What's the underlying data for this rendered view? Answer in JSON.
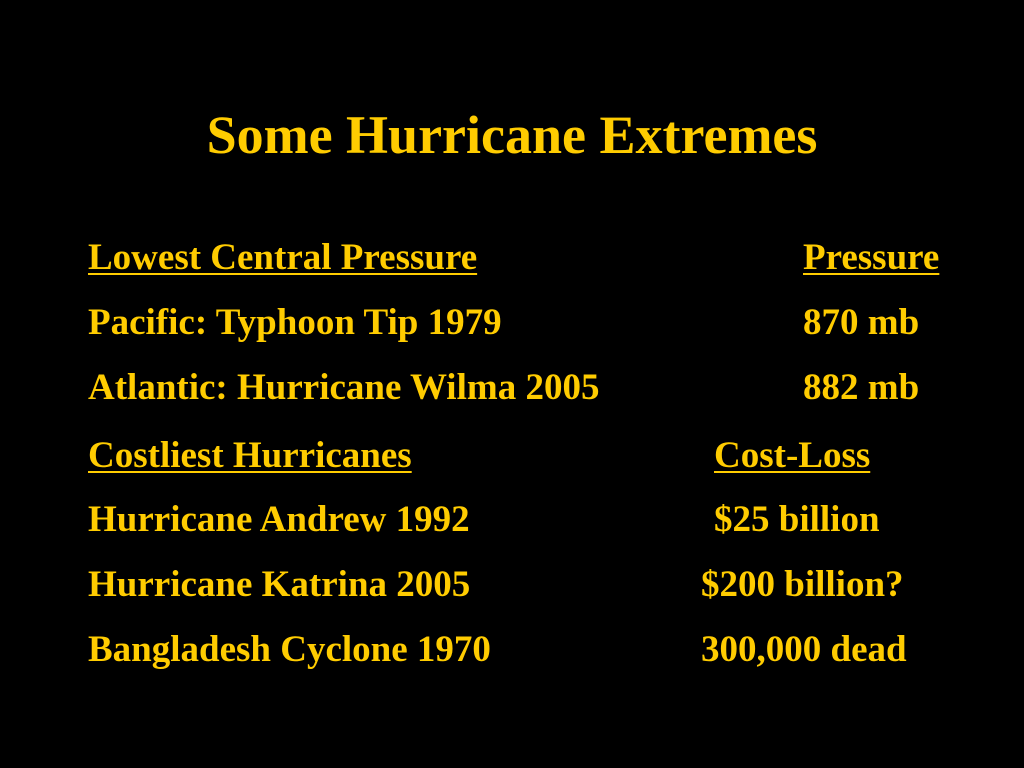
{
  "title": "Some Hurricane Extremes",
  "sections": [
    {
      "header": {
        "label": "Lowest Central Pressure",
        "value": "Pressure"
      },
      "rows": [
        [
          "Pacific: Typhoon Tip 1979",
          "870 mb"
        ],
        [
          "Atlantic: Hurricane Wilma 2005",
          "882 mb"
        ]
      ]
    },
    {
      "header": {
        "label": "Costliest Hurricanes",
        "value": "Cost-Loss"
      },
      "rows": [
        [
          "Hurricane Andrew 1992",
          "$25 billion"
        ],
        [
          "Hurricane Katrina 2005",
          "$200 billion?"
        ],
        [
          "Bangladesh Cyclone 1970",
          "300,000 dead"
        ]
      ]
    }
  ]
}
